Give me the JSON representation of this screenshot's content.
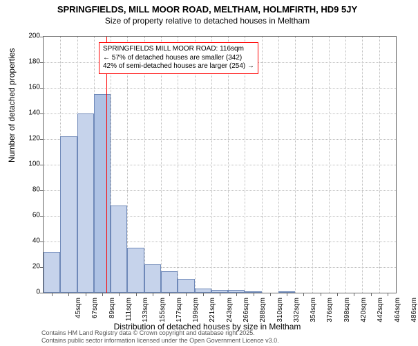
{
  "title": "SPRINGFIELDS, MILL MOOR ROAD, MELTHAM, HOLMFIRTH, HD9 5JY",
  "subtitle": "Size of property relative to detached houses in Meltham",
  "ylabel": "Number of detached properties",
  "xlabel": "Distribution of detached houses by size in Meltham",
  "credits_line1": "Contains HM Land Registry data © Crown copyright and database right 2025.",
  "credits_line2": "Contains public sector information licensed under the Open Government Licence v3.0.",
  "annotation": {
    "line1": "SPRINGFIELDS MILL MOOR ROAD: 116sqm",
    "line2": "← 57% of detached houses are smaller (342)",
    "line3": "42% of semi-detached houses are larger (254) →"
  },
  "chart": {
    "type": "histogram",
    "ylim": [
      0,
      200
    ],
    "ytick_step": 20,
    "yticks": [
      0,
      20,
      40,
      60,
      80,
      100,
      120,
      140,
      160,
      180,
      200
    ],
    "x_start": 34,
    "x_end": 496,
    "bin_width_sqm": 22,
    "xtick_labels": [
      "45sqm",
      "67sqm",
      "89sqm",
      "111sqm",
      "133sqm",
      "155sqm",
      "177sqm",
      "199sqm",
      "221sqm",
      "243sqm",
      "266sqm",
      "288sqm",
      "310sqm",
      "332sqm",
      "354sqm",
      "376sqm",
      "398sqm",
      "420sqm",
      "442sqm",
      "464sqm",
      "486sqm"
    ],
    "bar_values": [
      32,
      122,
      140,
      155,
      68,
      35,
      22,
      17,
      11,
      3,
      2,
      2,
      1,
      0,
      1,
      0,
      0,
      0,
      0,
      0,
      0
    ],
    "bar_fill": "#c6d3eb",
    "bar_stroke": "#6e88b8",
    "marker_value_sqm": 116,
    "marker_color": "#ff0000",
    "highlight_bar_index": 3,
    "highlight_fill": "#aec2e4",
    "background": "#ffffff",
    "grid_color": "#bbbbbb",
    "axis_color": "#666666",
    "tick_fontsize": 10,
    "label_fontsize": 12,
    "title_fontsize": 13
  }
}
